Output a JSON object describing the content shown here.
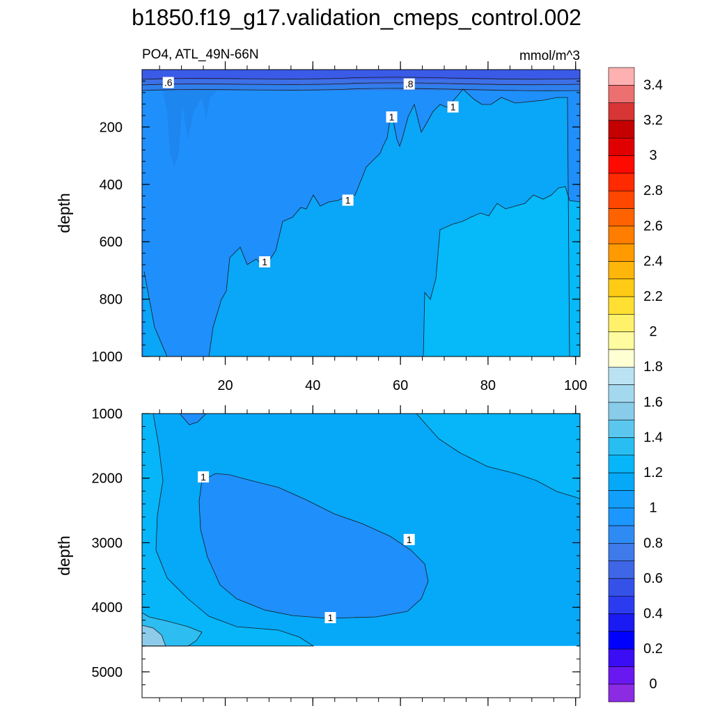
{
  "chart_data": {
    "type": "contour",
    "title": "b1850.f19_g17.validation_cmeps_control.002",
    "left_label": "PO4, ATL_49N-66N",
    "right_label": "mmol/m^3",
    "panels": [
      {
        "name": "upper",
        "ylabel": "depth",
        "ylim": [
          0,
          1000
        ],
        "yticks": [
          200,
          400,
          600,
          800,
          1000
        ],
        "xlim": [
          1,
          101
        ],
        "xticks": [
          20,
          40,
          60,
          80,
          100
        ],
        "contour_labels": [
          {
            "text": ".6",
            "x": 7,
            "y": 45
          },
          {
            "text": ".8",
            "x": 62,
            "y": 50
          },
          {
            "text": "1",
            "x": 58,
            "y": 165
          },
          {
            "text": "1",
            "x": 72,
            "y": 130
          },
          {
            "text": "1",
            "x": 48,
            "y": 455
          },
          {
            "text": "1",
            "x": 29,
            "y": 670
          }
        ]
      },
      {
        "name": "lower",
        "ylabel": "depth",
        "ylim": [
          1000,
          5400
        ],
        "yticks": [
          1000,
          2000,
          3000,
          4000,
          5000
        ],
        "xlim": [
          1,
          101
        ],
        "xticks": [
          20,
          40,
          60,
          80,
          100
        ],
        "contour_labels": [
          {
            "text": "1",
            "x": 15,
            "y": 1980
          },
          {
            "text": "1",
            "x": 62,
            "y": 2950
          },
          {
            "text": "1",
            "x": 44,
            "y": 4160
          }
        ]
      }
    ],
    "colorbar": {
      "labels": [
        "0",
        "0.2",
        "0.4",
        "0.6",
        "0.8",
        "1",
        "1.2",
        "1.4",
        "1.6",
        "1.8",
        "2",
        "2.2",
        "2.4",
        "2.6",
        "2.8",
        "3",
        "3.2",
        "3.4"
      ],
      "colors": [
        "#8B2BE2",
        "#6A18F0",
        "#3A0DF5",
        "#0000FF",
        "#1A1AF2",
        "#2B3CF0",
        "#3552E8",
        "#3F66E6",
        "#3F7AEA",
        "#2F8BF4",
        "#1C97FF",
        "#129FFB",
        "#06A8F8",
        "#06B6F8",
        "#28BEF2",
        "#5CC7EE",
        "#88CCEA",
        "#A4D8EE",
        "#BBE2F2",
        "#FFFFD4",
        "#FFFCA0",
        "#FFF16A",
        "#FFE032",
        "#FFCB14",
        "#FFB60A",
        "#FF9A00",
        "#FF7E00",
        "#FF6300",
        "#FF4700",
        "#FF2A00",
        "#FF0A00",
        "#E00000",
        "#C40000",
        "#D83535",
        "#EC7070",
        "#FFB0B0"
      ]
    }
  }
}
